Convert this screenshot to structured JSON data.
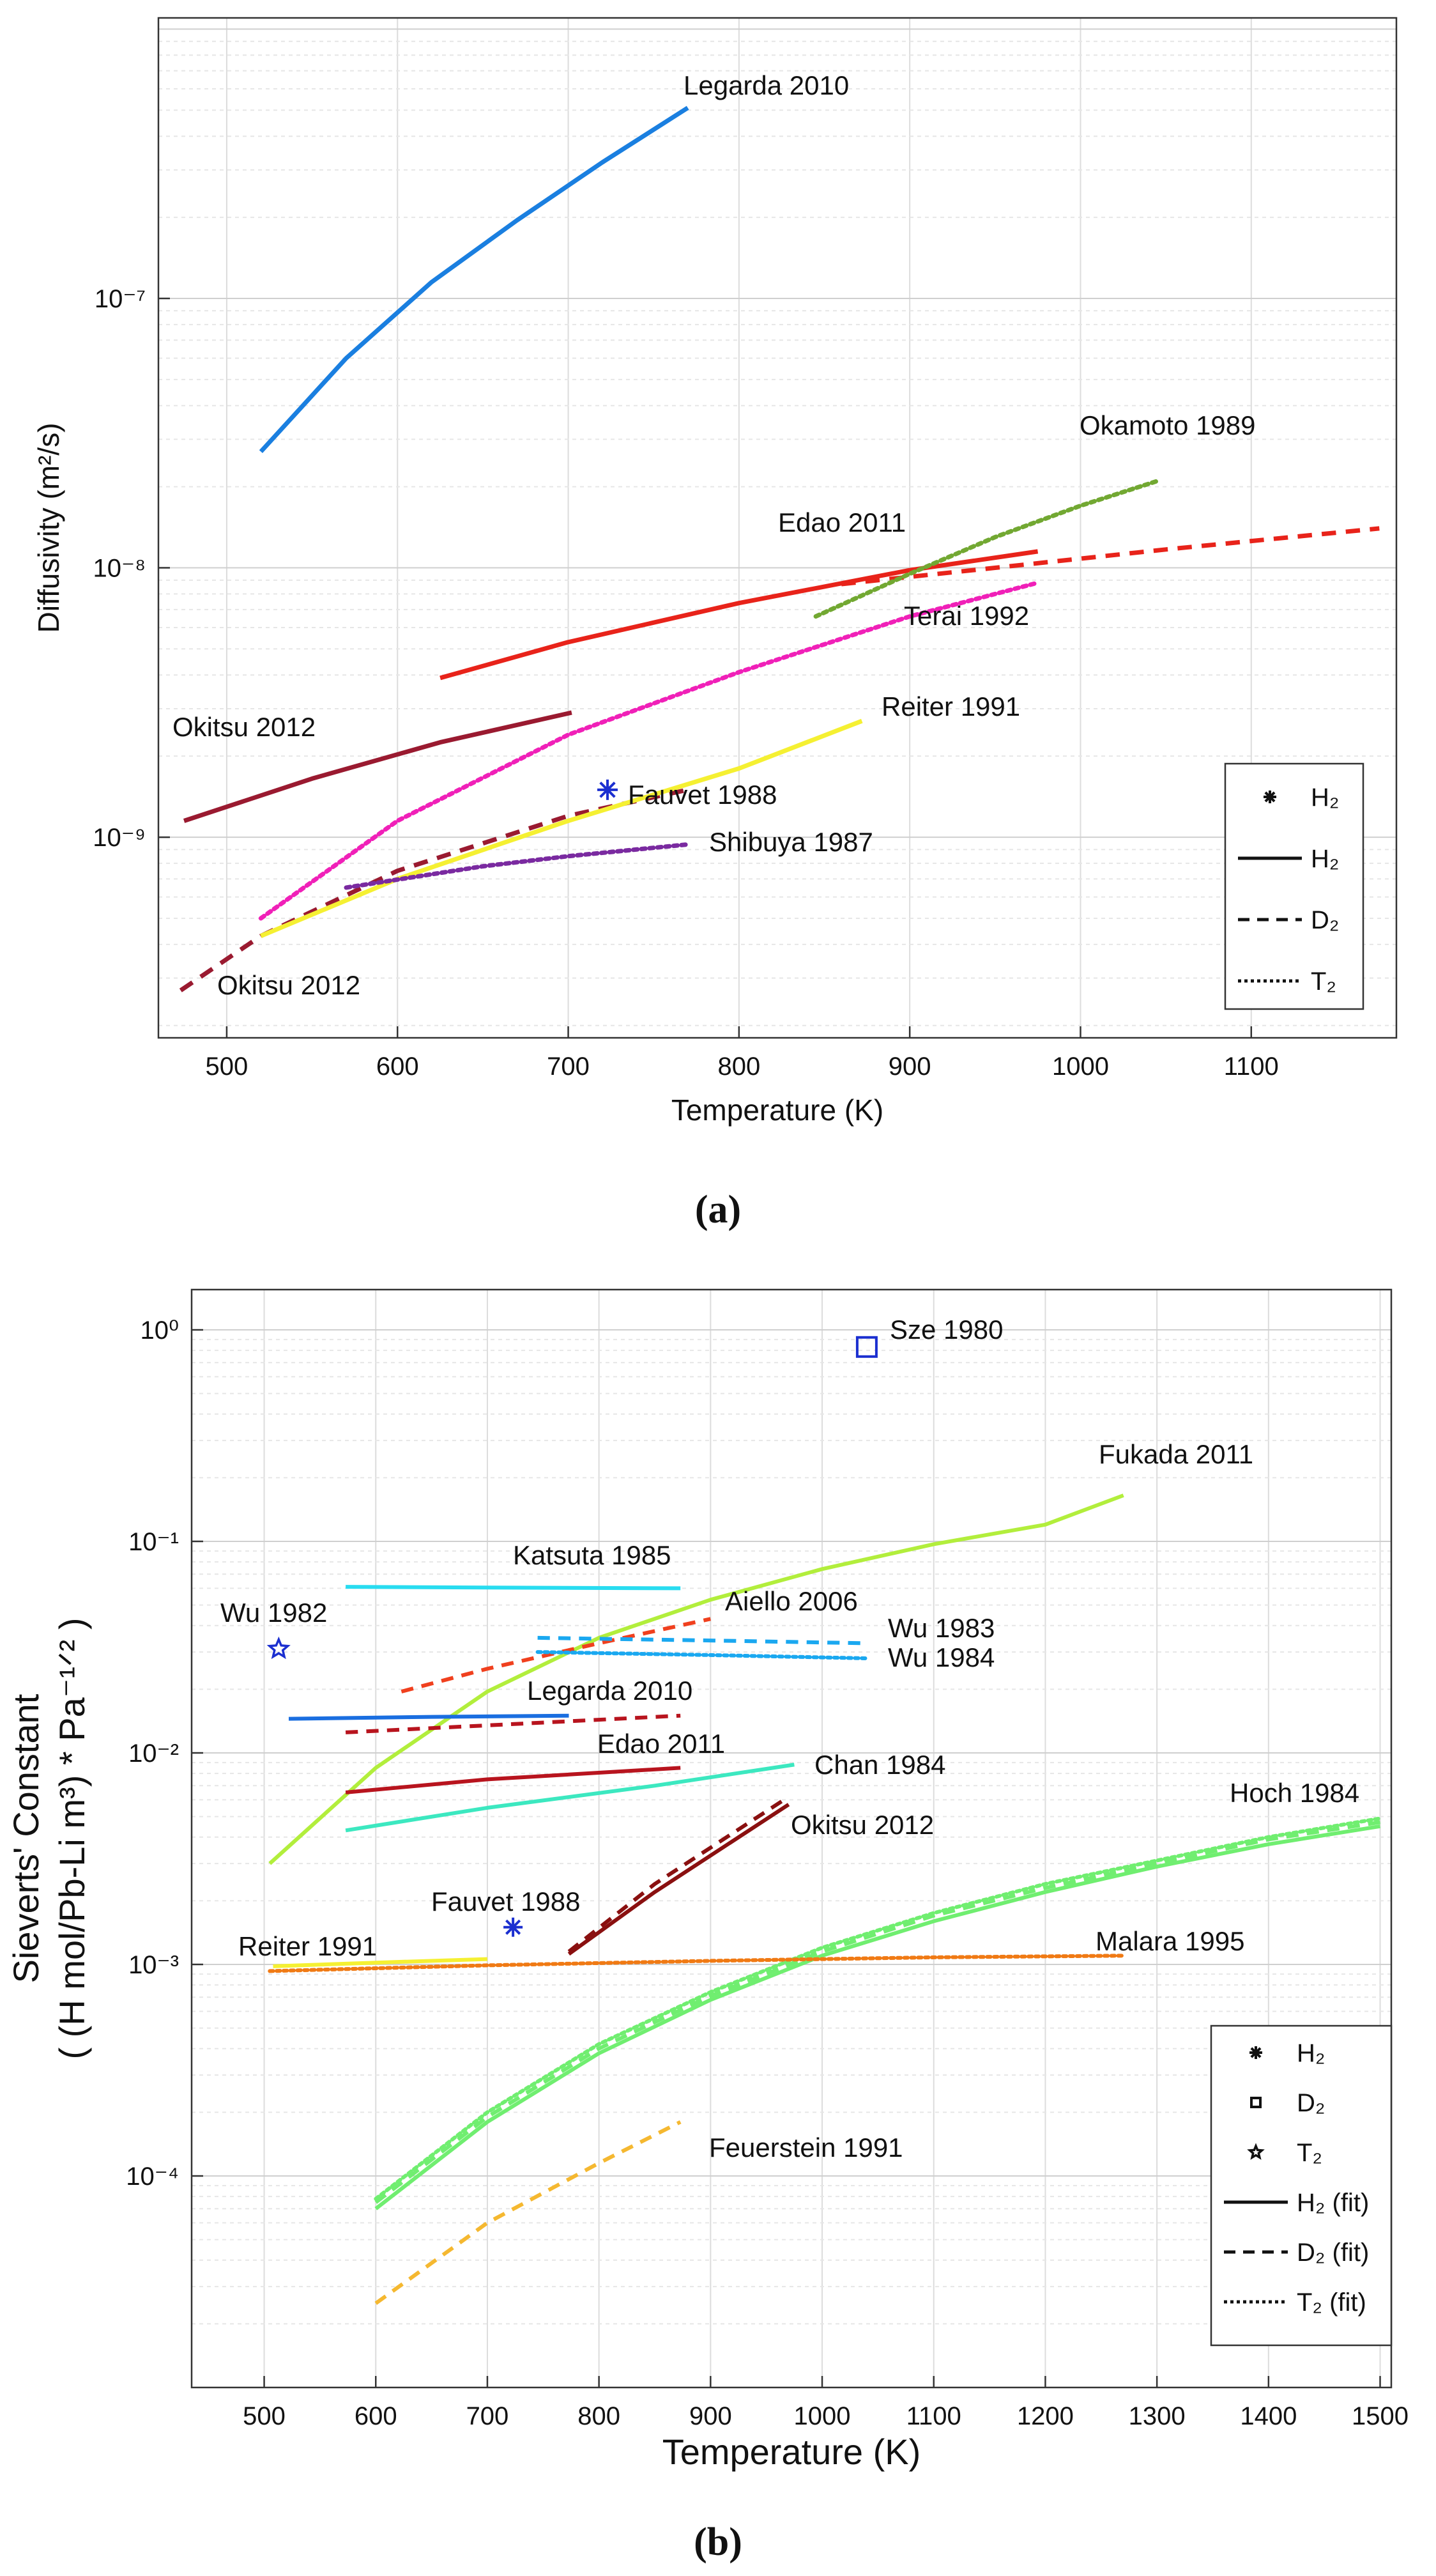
{
  "panels": [
    {
      "id": "a",
      "caption": "(a)",
      "chart_data": {
        "type": "line",
        "title": "",
        "xlabel": "Temperature (K)",
        "ylabel": "Diffusivity (m²/s)",
        "yscale": "log",
        "grid": true,
        "xlim": [
          460,
          1185
        ],
        "ylim": [
          1.8e-10,
          1.1e-06
        ],
        "xticks": [
          500,
          600,
          700,
          800,
          900,
          1000,
          1100
        ],
        "yticks": [
          {
            "value": 1e-09,
            "label": "10⁻⁹"
          },
          {
            "value": 1e-08,
            "label": "10⁻⁸"
          },
          {
            "value": 1e-07,
            "label": "10⁻⁷"
          }
        ],
        "legend": {
          "position": "bottom-right",
          "entries": [
            {
              "style": "marker",
              "label": "H₂"
            },
            {
              "style": "solid",
              "label": "H₂"
            },
            {
              "style": "dashed",
              "label": "D₂"
            },
            {
              "style": "dotted",
              "label": "T₂"
            }
          ]
        },
        "series": [
          {
            "name": "Legarda 2010",
            "label": "Legarda 2010",
            "color": "#1a7fe0",
            "style": "solid",
            "x": [
              520,
              570,
              620,
              670,
              720,
              770
            ],
            "y": [
              2.7e-08,
              6e-08,
              1.15e-07,
              1.95e-07,
              3.2e-07,
              5.1e-07
            ]
          },
          {
            "name": "Edao 2011 (H2)",
            "label": "Edao 2011",
            "color": "#e8231a",
            "style": "solid",
            "x": [
              625,
              700,
              800,
              900,
              975
            ],
            "y": [
              3.9e-09,
              5.3e-09,
              7.4e-09,
              9.8e-09,
              1.15e-08
            ]
          },
          {
            "name": "Edao 2011 (D2)",
            "label": "",
            "color": "#e8231a",
            "style": "dashed",
            "x": [
              860,
              950,
              1050,
              1175
            ],
            "y": [
              8.7e-09,
              1e-08,
              1.17e-08,
              1.4e-08
            ]
          },
          {
            "name": "Okamoto 1989",
            "label": "Okamoto 1989",
            "color": "#72a832",
            "style": "dotted",
            "x": [
              845,
              900,
              950,
              1000,
              1045
            ],
            "y": [
              6.6e-09,
              9.5e-09,
              1.3e-08,
              1.7e-08,
              2.1e-08
            ]
          },
          {
            "name": "Terai 1992",
            "label": "Terai 1992",
            "color": "#f020b8",
            "style": "dotted",
            "x": [
              520,
              600,
              700,
              800,
              900,
              975
            ],
            "y": [
              5e-10,
              1.15e-09,
              2.4e-09,
              4.1e-09,
              6.6e-09,
              8.8e-09
            ]
          },
          {
            "name": "Okitsu 2012 (H2)",
            "label": "Okitsu 2012",
            "color": "#9a1a30",
            "style": "solid",
            "x": [
              475,
              550,
              625,
              702
            ],
            "y": [
              1.15e-09,
              1.65e-09,
              2.25e-09,
              2.9e-09
            ]
          },
          {
            "name": "Okitsu 2012 (D2)",
            "label": "Okitsu 2012",
            "color": "#9a1a30",
            "style": "dashed",
            "x": [
              473,
              520,
              600,
              700,
              770
            ],
            "y": [
              2.7e-10,
              4.3e-10,
              7.5e-10,
              1.2e-09,
              1.5e-09
            ]
          },
          {
            "name": "Reiter 1991",
            "label": "Reiter 1991",
            "color": "#f5f032",
            "style": "solid",
            "x": [
              520,
              600,
              700,
              800,
              872
            ],
            "y": [
              4.3e-10,
              7e-10,
              1.15e-09,
              1.8e-09,
              2.7e-09
            ]
          },
          {
            "name": "Shibuya 1987",
            "label": "Shibuya 1987",
            "color": "#7a2aa0",
            "style": "dotted",
            "x": [
              570,
              650,
              700,
              770
            ],
            "y": [
              6.5e-10,
              7.8e-10,
              8.5e-10,
              9.4e-10
            ]
          }
        ],
        "points": [
          {
            "name": "Fauvet 1988",
            "label": "Fauvet 1988",
            "marker": "asterisk",
            "color": "#1b2fd0",
            "x": 723,
            "y": 1.5e-09
          }
        ]
      }
    },
    {
      "id": "b",
      "caption": "(b)",
      "chart_data": {
        "type": "line",
        "title": "",
        "xlabel": "Temperature (K)",
        "ylabel_line1": "Sieverts' Constant",
        "ylabel_line2": "( (H mol/Pb-Li m³) * Pa⁻¹ᐟ² )",
        "yscale": "log",
        "grid": true,
        "xlim": [
          435,
          1510
        ],
        "ylim": [
          1e-05,
          1.55
        ],
        "xticks": [
          500,
          600,
          700,
          800,
          900,
          1000,
          1100,
          1200,
          1300,
          1400,
          1500
        ],
        "yticks": [
          {
            "value": 0.0001,
            "label": "10⁻⁴"
          },
          {
            "value": 0.001,
            "label": "10⁻³"
          },
          {
            "value": 0.01,
            "label": "10⁻²"
          },
          {
            "value": 0.1,
            "label": "10⁻¹"
          },
          {
            "value": 1,
            "label": "10⁰"
          }
        ],
        "legend": {
          "position": "bottom-right",
          "entries": [
            {
              "style": "asterisk",
              "label": "H₂"
            },
            {
              "style": "square",
              "label": "D₂"
            },
            {
              "style": "star",
              "label": "T₂"
            },
            {
              "style": "solid",
              "label": "H₂ (fit)"
            },
            {
              "style": "dashed",
              "label": "D₂ (fit)"
            },
            {
              "style": "dotted",
              "label": "T₂ (fit)"
            }
          ]
        },
        "series": [
          {
            "name": "Fukada 2011",
            "label": "Fukada 2011",
            "color": "#b2ee3c",
            "style": "solid",
            "x": [
              505,
              600,
              700,
              800,
              900,
              1000,
              1100,
              1200,
              1270
            ],
            "y": [
              0.003,
              0.0085,
              0.0195,
              0.035,
              0.053,
              0.074,
              0.097,
              0.12,
              0.165
            ]
          },
          {
            "name": "Katsuta 1985",
            "label": "Katsuta 1985",
            "color": "#28dcf0",
            "style": "solid",
            "x": [
              573,
              700,
              873
            ],
            "y": [
              0.061,
              0.0605,
              0.06
            ]
          },
          {
            "name": "Aiello 2006",
            "label": "Aiello 2006",
            "color": "#f0401e",
            "style": "dashed",
            "x": [
              623,
              700,
              800,
              900
            ],
            "y": [
              0.0195,
              0.025,
              0.033,
              0.043
            ]
          },
          {
            "name": "Wu 1983",
            "label": "Wu 1983",
            "color": "#1aa8f0",
            "style": "dashed",
            "x": [
              745,
              900,
              1040
            ],
            "y": [
              0.035,
              0.034,
              0.033
            ]
          },
          {
            "name": "Wu 1984",
            "label": "Wu 1984",
            "color": "#1aa8f0",
            "style": "dotted",
            "x": [
              745,
              900,
              1040
            ],
            "y": [
              0.03,
              0.029,
              0.028
            ]
          },
          {
            "name": "Legarda 2010 (H2)",
            "label": "Legarda 2010",
            "color": "#1a6ee0",
            "style": "solid",
            "x": [
              522,
              650,
              773
            ],
            "y": [
              0.0145,
              0.0148,
              0.015
            ]
          },
          {
            "name": "Legarda 2010 (D2)",
            "label": "",
            "color": "#b8141e",
            "style": "dashed",
            "x": [
              573,
              700,
              873
            ],
            "y": [
              0.0125,
              0.0135,
              0.015
            ]
          },
          {
            "name": "Edao 2011",
            "label": "Edao 2011",
            "color": "#b8141e",
            "style": "solid",
            "x": [
              573,
              700,
              873
            ],
            "y": [
              0.0065,
              0.0075,
              0.0085
            ]
          },
          {
            "name": "Chan 1984",
            "label": "Chan 1984",
            "color": "#3ce8c0",
            "style": "solid",
            "x": [
              573,
              700,
              850,
              975
            ],
            "y": [
              0.0043,
              0.0055,
              0.007,
              0.0088
            ]
          },
          {
            "name": "Okitsu 2012 (H2)",
            "label": "Okitsu 2012",
            "color": "#8a1010",
            "style": "solid",
            "x": [
              773,
              850,
              970
            ],
            "y": [
              0.00112,
              0.0022,
              0.0057
            ]
          },
          {
            "name": "Okitsu 2012 (D2)",
            "label": "",
            "color": "#8a1010",
            "style": "dashed",
            "x": [
              773,
              850,
              970
            ],
            "y": [
              0.00115,
              0.0024,
              0.0062
            ]
          },
          {
            "name": "Hoch 1984 (H2)",
            "label": "Hoch 1984",
            "color": "#70ee70",
            "style": "solid",
            "x": [
              600,
              700,
              800,
              900,
              1000,
              1100,
              1200,
              1300,
              1400,
              1500
            ],
            "y": [
              7e-05,
              0.00018,
              0.00038,
              0.00068,
              0.0011,
              0.0016,
              0.0022,
              0.0029,
              0.0037,
              0.0045
            ]
          },
          {
            "name": "Hoch 1984 (D2)",
            "label": "",
            "color": "#70ee70",
            "style": "dashed",
            "x": [
              600,
              700,
              800,
              900,
              1000,
              1100,
              1200,
              1300,
              1400,
              1500
            ],
            "y": [
              7.5e-05,
              0.00019,
              0.0004,
              0.00071,
              0.00115,
              0.0017,
              0.0023,
              0.003,
              0.0039,
              0.0047
            ]
          },
          {
            "name": "Hoch 1984 (T2)",
            "label": "",
            "color": "#70ee70",
            "style": "dotted",
            "x": [
              600,
              700,
              800,
              900,
              1000,
              1100,
              1200,
              1300,
              1400,
              1500
            ],
            "y": [
              7.8e-05,
              0.0002,
              0.00042,
              0.00074,
              0.0012,
              0.00175,
              0.0024,
              0.0031,
              0.004,
              0.0049
            ]
          },
          {
            "name": "Malara 1995",
            "label": "Malara 1995",
            "color": "#f07a14",
            "style": "dotted",
            "x": [
              505,
              700,
              900,
              1100,
              1270
            ],
            "y": [
              0.00093,
              0.00099,
              0.00104,
              0.00108,
              0.0011
            ]
          },
          {
            "name": "Reiter 1991",
            "label": "Reiter 1991",
            "color": "#f5f032",
            "style": "solid",
            "x": [
              508,
              600,
              700
            ],
            "y": [
              0.00098,
              0.00102,
              0.00106
            ]
          },
          {
            "name": "Feuerstein 1991",
            "label": "Feuerstein 1991",
            "color": "#f5b830",
            "style": "dashed",
            "x": [
              600,
              700,
              800,
              873
            ],
            "y": [
              2.5e-05,
              6e-05,
              0.000115,
              0.00018
            ]
          }
        ],
        "points": [
          {
            "name": "Sze 1980",
            "label": "Sze 1980",
            "marker": "square",
            "color": "#1b2fd0",
            "x": 1040,
            "y": 0.83
          },
          {
            "name": "Wu 1982",
            "label": "Wu 1982",
            "marker": "star",
            "color": "#1b2fd0",
            "x": 513,
            "y": 0.031
          },
          {
            "name": "Fauvet 1988",
            "label": "Fauvet 1988",
            "marker": "asterisk",
            "color": "#1b2fd0",
            "x": 723,
            "y": 0.0015
          }
        ]
      }
    }
  ]
}
